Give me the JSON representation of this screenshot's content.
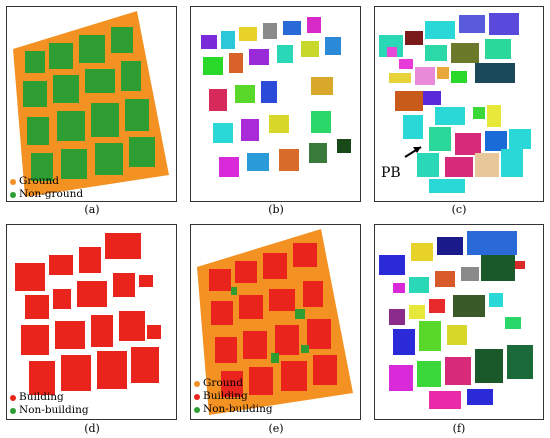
{
  "captions": [
    "(a)",
    "(b)",
    "(c)",
    "(d)",
    "(e)",
    "(f)"
  ],
  "legend_a": {
    "items": [
      {
        "label": "Ground",
        "color": "#f39223"
      },
      {
        "label": "Non-ground",
        "color": "#2e9e33"
      }
    ]
  },
  "legend_d": {
    "items": [
      {
        "label": "Building",
        "color": "#e8241c"
      },
      {
        "label": "Non-building",
        "color": "#2e9e33"
      }
    ]
  },
  "legend_e": {
    "items": [
      {
        "label": "Ground",
        "color": "#f39223"
      },
      {
        "label": "Building",
        "color": "#e8241c"
      },
      {
        "label": "Non-building",
        "color": "#2e9e33"
      }
    ]
  },
  "annotation_c": "PB",
  "colors": {
    "ground": "#f39223",
    "vegetation": "#2e9e33",
    "building": "#e8241c"
  }
}
